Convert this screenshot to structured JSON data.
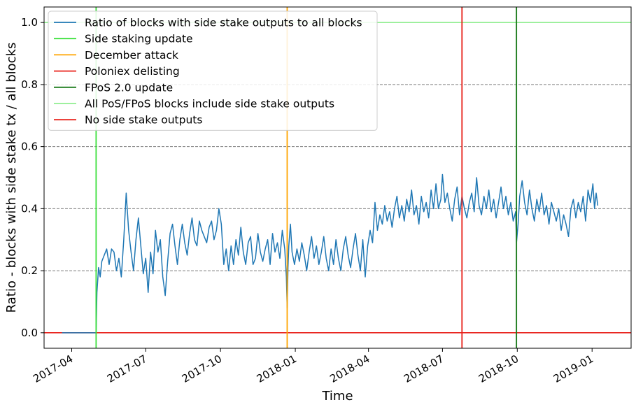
{
  "chart_data": {
    "type": "line",
    "title": "",
    "xlabel": "Time",
    "ylabel": "Ratio - blocks with side stake tx / all blocks",
    "xlim": [
      "2017-02-26",
      "2019-02-18"
    ],
    "ylim": [
      -0.05,
      1.05
    ],
    "grid": "y-dashed",
    "legend_position": "top-left",
    "x_ticks": [
      {
        "date": "2017-04-01",
        "label": "2017-04"
      },
      {
        "date": "2017-07-01",
        "label": "2017-07"
      },
      {
        "date": "2017-10-01",
        "label": "2017-10"
      },
      {
        "date": "2018-01-01",
        "label": "2018-01"
      },
      {
        "date": "2018-04-01",
        "label": "2018-04"
      },
      {
        "date": "2018-07-01",
        "label": "2018-07"
      },
      {
        "date": "2018-10-01",
        "label": "2018-10"
      },
      {
        "date": "2019-01-01",
        "label": "2019-01"
      }
    ],
    "y_ticks": [
      {
        "value": 0.0,
        "label": "0.0"
      },
      {
        "value": 0.2,
        "label": "0.2"
      },
      {
        "value": 0.4,
        "label": "0.4"
      },
      {
        "value": 0.6,
        "label": "0.6"
      },
      {
        "value": 0.8,
        "label": "0.8"
      },
      {
        "value": 1.0,
        "label": "1.0"
      }
    ],
    "series": [
      {
        "name": "Ratio of blocks with side stake outputs to all blocks",
        "color": "#1f77b4",
        "points": [
          [
            "2017-03-20",
            0.0
          ],
          [
            "2017-04-15",
            0.0
          ],
          [
            "2017-05-01",
            0.0
          ],
          [
            "2017-05-02",
            0.13
          ],
          [
            "2017-05-04",
            0.21
          ],
          [
            "2017-05-06",
            0.18
          ],
          [
            "2017-05-08",
            0.23
          ],
          [
            "2017-05-11",
            0.25
          ],
          [
            "2017-05-14",
            0.27
          ],
          [
            "2017-05-17",
            0.22
          ],
          [
            "2017-05-20",
            0.27
          ],
          [
            "2017-05-23",
            0.26
          ],
          [
            "2017-05-26",
            0.2
          ],
          [
            "2017-05-29",
            0.24
          ],
          [
            "2017-06-01",
            0.18
          ],
          [
            "2017-06-04",
            0.3
          ],
          [
            "2017-06-07",
            0.45
          ],
          [
            "2017-06-10",
            0.33
          ],
          [
            "2017-06-13",
            0.26
          ],
          [
            "2017-06-16",
            0.2
          ],
          [
            "2017-06-19",
            0.3
          ],
          [
            "2017-06-22",
            0.37
          ],
          [
            "2017-06-25",
            0.28
          ],
          [
            "2017-06-28",
            0.19
          ],
          [
            "2017-07-01",
            0.24
          ],
          [
            "2017-07-04",
            0.13
          ],
          [
            "2017-07-07",
            0.26
          ],
          [
            "2017-07-10",
            0.19
          ],
          [
            "2017-07-13",
            0.33
          ],
          [
            "2017-07-16",
            0.26
          ],
          [
            "2017-07-19",
            0.3
          ],
          [
            "2017-07-22",
            0.18
          ],
          [
            "2017-07-25",
            0.12
          ],
          [
            "2017-07-28",
            0.23
          ],
          [
            "2017-07-31",
            0.32
          ],
          [
            "2017-08-03",
            0.35
          ],
          [
            "2017-08-06",
            0.28
          ],
          [
            "2017-08-09",
            0.22
          ],
          [
            "2017-08-12",
            0.3
          ],
          [
            "2017-08-15",
            0.35
          ],
          [
            "2017-08-18",
            0.29
          ],
          [
            "2017-08-21",
            0.25
          ],
          [
            "2017-08-24",
            0.32
          ],
          [
            "2017-08-27",
            0.37
          ],
          [
            "2017-08-30",
            0.3
          ],
          [
            "2017-09-02",
            0.28
          ],
          [
            "2017-09-05",
            0.36
          ],
          [
            "2017-09-08",
            0.33
          ],
          [
            "2017-09-11",
            0.31
          ],
          [
            "2017-09-14",
            0.29
          ],
          [
            "2017-09-17",
            0.34
          ],
          [
            "2017-09-20",
            0.36
          ],
          [
            "2017-09-23",
            0.3
          ],
          [
            "2017-09-26",
            0.33
          ],
          [
            "2017-09-29",
            0.4
          ],
          [
            "2017-10-02",
            0.35
          ],
          [
            "2017-10-05",
            0.22
          ],
          [
            "2017-10-08",
            0.27
          ],
          [
            "2017-10-11",
            0.2
          ],
          [
            "2017-10-14",
            0.28
          ],
          [
            "2017-10-17",
            0.22
          ],
          [
            "2017-10-20",
            0.3
          ],
          [
            "2017-10-23",
            0.25
          ],
          [
            "2017-10-26",
            0.34
          ],
          [
            "2017-10-29",
            0.26
          ],
          [
            "2017-11-01",
            0.22
          ],
          [
            "2017-11-04",
            0.29
          ],
          [
            "2017-11-07",
            0.31
          ],
          [
            "2017-11-10",
            0.22
          ],
          [
            "2017-11-13",
            0.24
          ],
          [
            "2017-11-16",
            0.32
          ],
          [
            "2017-11-19",
            0.26
          ],
          [
            "2017-11-22",
            0.23
          ],
          [
            "2017-11-25",
            0.27
          ],
          [
            "2017-11-28",
            0.3
          ],
          [
            "2017-12-01",
            0.22
          ],
          [
            "2017-12-04",
            0.32
          ],
          [
            "2017-12-07",
            0.26
          ],
          [
            "2017-12-10",
            0.29
          ],
          [
            "2017-12-13",
            0.24
          ],
          [
            "2017-12-16",
            0.33
          ],
          [
            "2017-12-19",
            0.27
          ],
          [
            "2017-12-21",
            0.18
          ],
          [
            "2017-12-22",
            0.08
          ],
          [
            "2017-12-23",
            0.21
          ],
          [
            "2017-12-24",
            0.28
          ],
          [
            "2017-12-26",
            0.35
          ],
          [
            "2017-12-28",
            0.26
          ],
          [
            "2017-12-31",
            0.22
          ],
          [
            "2018-01-03",
            0.27
          ],
          [
            "2018-01-06",
            0.23
          ],
          [
            "2018-01-09",
            0.29
          ],
          [
            "2018-01-12",
            0.25
          ],
          [
            "2018-01-15",
            0.2
          ],
          [
            "2018-01-18",
            0.26
          ],
          [
            "2018-01-21",
            0.31
          ],
          [
            "2018-01-24",
            0.24
          ],
          [
            "2018-01-27",
            0.28
          ],
          [
            "2018-01-30",
            0.22
          ],
          [
            "2018-02-02",
            0.26
          ],
          [
            "2018-02-05",
            0.31
          ],
          [
            "2018-02-08",
            0.24
          ],
          [
            "2018-02-11",
            0.2
          ],
          [
            "2018-02-14",
            0.27
          ],
          [
            "2018-02-17",
            0.22
          ],
          [
            "2018-02-20",
            0.3
          ],
          [
            "2018-02-23",
            0.24
          ],
          [
            "2018-02-26",
            0.2
          ],
          [
            "2018-03-01",
            0.27
          ],
          [
            "2018-03-04",
            0.31
          ],
          [
            "2018-03-07",
            0.25
          ],
          [
            "2018-03-10",
            0.21
          ],
          [
            "2018-03-13",
            0.27
          ],
          [
            "2018-03-16",
            0.32
          ],
          [
            "2018-03-19",
            0.25
          ],
          [
            "2018-03-22",
            0.2
          ],
          [
            "2018-03-25",
            0.3
          ],
          [
            "2018-03-28",
            0.18
          ],
          [
            "2018-03-31",
            0.28
          ],
          [
            "2018-04-03",
            0.33
          ],
          [
            "2018-04-06",
            0.29
          ],
          [
            "2018-04-09",
            0.42
          ],
          [
            "2018-04-12",
            0.33
          ],
          [
            "2018-04-15",
            0.38
          ],
          [
            "2018-04-18",
            0.35
          ],
          [
            "2018-04-21",
            0.41
          ],
          [
            "2018-04-24",
            0.36
          ],
          [
            "2018-04-27",
            0.39
          ],
          [
            "2018-04-30",
            0.34
          ],
          [
            "2018-05-03",
            0.4
          ],
          [
            "2018-05-06",
            0.44
          ],
          [
            "2018-05-09",
            0.37
          ],
          [
            "2018-05-12",
            0.41
          ],
          [
            "2018-05-15",
            0.36
          ],
          [
            "2018-05-18",
            0.43
          ],
          [
            "2018-05-21",
            0.39
          ],
          [
            "2018-05-24",
            0.46
          ],
          [
            "2018-05-27",
            0.38
          ],
          [
            "2018-05-30",
            0.41
          ],
          [
            "2018-06-02",
            0.35
          ],
          [
            "2018-06-05",
            0.44
          ],
          [
            "2018-06-08",
            0.39
          ],
          [
            "2018-06-11",
            0.42
          ],
          [
            "2018-06-14",
            0.37
          ],
          [
            "2018-06-17",
            0.46
          ],
          [
            "2018-06-20",
            0.4
          ],
          [
            "2018-06-23",
            0.48
          ],
          [
            "2018-06-26",
            0.4
          ],
          [
            "2018-06-29",
            0.43
          ],
          [
            "2018-07-01",
            0.51
          ],
          [
            "2018-07-04",
            0.42
          ],
          [
            "2018-07-07",
            0.45
          ],
          [
            "2018-07-10",
            0.4
          ],
          [
            "2018-07-13",
            0.36
          ],
          [
            "2018-07-16",
            0.43
          ],
          [
            "2018-07-19",
            0.47
          ],
          [
            "2018-07-22",
            0.38
          ],
          [
            "2018-07-25",
            0.44
          ],
          [
            "2018-07-28",
            0.4
          ],
          [
            "2018-07-31",
            0.37
          ],
          [
            "2018-08-03",
            0.42
          ],
          [
            "2018-08-06",
            0.45
          ],
          [
            "2018-08-09",
            0.39
          ],
          [
            "2018-08-12",
            0.5
          ],
          [
            "2018-08-15",
            0.41
          ],
          [
            "2018-08-18",
            0.38
          ],
          [
            "2018-08-21",
            0.44
          ],
          [
            "2018-08-24",
            0.4
          ],
          [
            "2018-08-27",
            0.46
          ],
          [
            "2018-08-30",
            0.39
          ],
          [
            "2018-09-02",
            0.43
          ],
          [
            "2018-09-05",
            0.37
          ],
          [
            "2018-09-08",
            0.42
          ],
          [
            "2018-09-11",
            0.47
          ],
          [
            "2018-09-14",
            0.4
          ],
          [
            "2018-09-17",
            0.44
          ],
          [
            "2018-09-20",
            0.38
          ],
          [
            "2018-09-23",
            0.42
          ],
          [
            "2018-09-26",
            0.36
          ],
          [
            "2018-09-29",
            0.39
          ],
          [
            "2018-09-30",
            0.29
          ],
          [
            "2018-10-02",
            0.35
          ],
          [
            "2018-10-04",
            0.44
          ],
          [
            "2018-10-07",
            0.49
          ],
          [
            "2018-10-10",
            0.42
          ],
          [
            "2018-10-13",
            0.38
          ],
          [
            "2018-10-16",
            0.46
          ],
          [
            "2018-10-19",
            0.4
          ],
          [
            "2018-10-22",
            0.36
          ],
          [
            "2018-10-25",
            0.43
          ],
          [
            "2018-10-28",
            0.39
          ],
          [
            "2018-10-31",
            0.45
          ],
          [
            "2018-11-03",
            0.38
          ],
          [
            "2018-11-06",
            0.41
          ],
          [
            "2018-11-09",
            0.35
          ],
          [
            "2018-11-12",
            0.42
          ],
          [
            "2018-11-15",
            0.39
          ],
          [
            "2018-11-18",
            0.36
          ],
          [
            "2018-11-21",
            0.4
          ],
          [
            "2018-11-24",
            0.33
          ],
          [
            "2018-11-27",
            0.38
          ],
          [
            "2018-11-30",
            0.35
          ],
          [
            "2018-12-03",
            0.31
          ],
          [
            "2018-12-06",
            0.4
          ],
          [
            "2018-12-09",
            0.43
          ],
          [
            "2018-12-12",
            0.37
          ],
          [
            "2018-12-15",
            0.42
          ],
          [
            "2018-12-18",
            0.39
          ],
          [
            "2018-12-21",
            0.44
          ],
          [
            "2018-12-24",
            0.36
          ],
          [
            "2018-12-27",
            0.46
          ],
          [
            "2018-12-30",
            0.42
          ],
          [
            "2019-01-02",
            0.48
          ],
          [
            "2019-01-04",
            0.4
          ],
          [
            "2019-01-06",
            0.45
          ],
          [
            "2019-01-08",
            0.41
          ]
        ]
      }
    ],
    "vertical_lines": [
      {
        "name": "Side staking update",
        "date": "2017-05-01",
        "color": "#3de03d"
      },
      {
        "name": "December attack",
        "date": "2017-12-22",
        "color": "#ffa500"
      },
      {
        "name": "Poloniex delisting",
        "date": "2018-07-25",
        "color": "#e8211a"
      },
      {
        "name": "FPoS 2.0 update",
        "date": "2018-09-30",
        "color": "#1a7a1a"
      }
    ],
    "horizontal_lines": [
      {
        "name": "All PoS/FPoS blocks include side stake outputs",
        "value": 1.0,
        "color": "#90ee90"
      },
      {
        "name": "No side stake outputs",
        "value": 0.0,
        "color": "#e8211a"
      }
    ]
  }
}
